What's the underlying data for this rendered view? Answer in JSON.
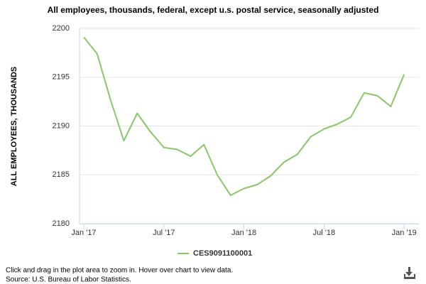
{
  "chart_data": {
    "type": "line",
    "title": "All employees, thousands, federal, except u.s. postal service, seasonally adjusted",
    "y_label": "ALL EMPLOYEES, THOUSANDS",
    "categories": [
      "Jan '17",
      null,
      null,
      null,
      null,
      null,
      "Jul '17",
      null,
      null,
      null,
      null,
      null,
      "Jan '18",
      null,
      null,
      null,
      null,
      null,
      "Jul '18",
      null,
      null,
      null,
      null,
      null,
      "Jan '19"
    ],
    "series": [
      {
        "name": "CES9091100001",
        "color": "#8cc56b",
        "values": [
          2199.1,
          2197.4,
          2192.7,
          2188.5,
          2191.3,
          2189.4,
          2187.8,
          2187.6,
          2186.9,
          2188.1,
          2185.0,
          2182.9,
          2183.6,
          2184.0,
          2184.9,
          2186.3,
          2187.1,
          2188.9,
          2189.7,
          2190.2,
          2190.9,
          2193.4,
          2193.1,
          2192.0,
          2195.3
        ]
      }
    ],
    "ylim": [
      2180,
      2200
    ],
    "yticks": [
      2180,
      2185,
      2190,
      2195,
      2200
    ],
    "grid": true,
    "legend": "bottom",
    "instructions": "Click and drag in the plot area to zoom in. Hover over chart to view data.",
    "source": "Source: U.S. Bureau of Labor Statistics."
  }
}
